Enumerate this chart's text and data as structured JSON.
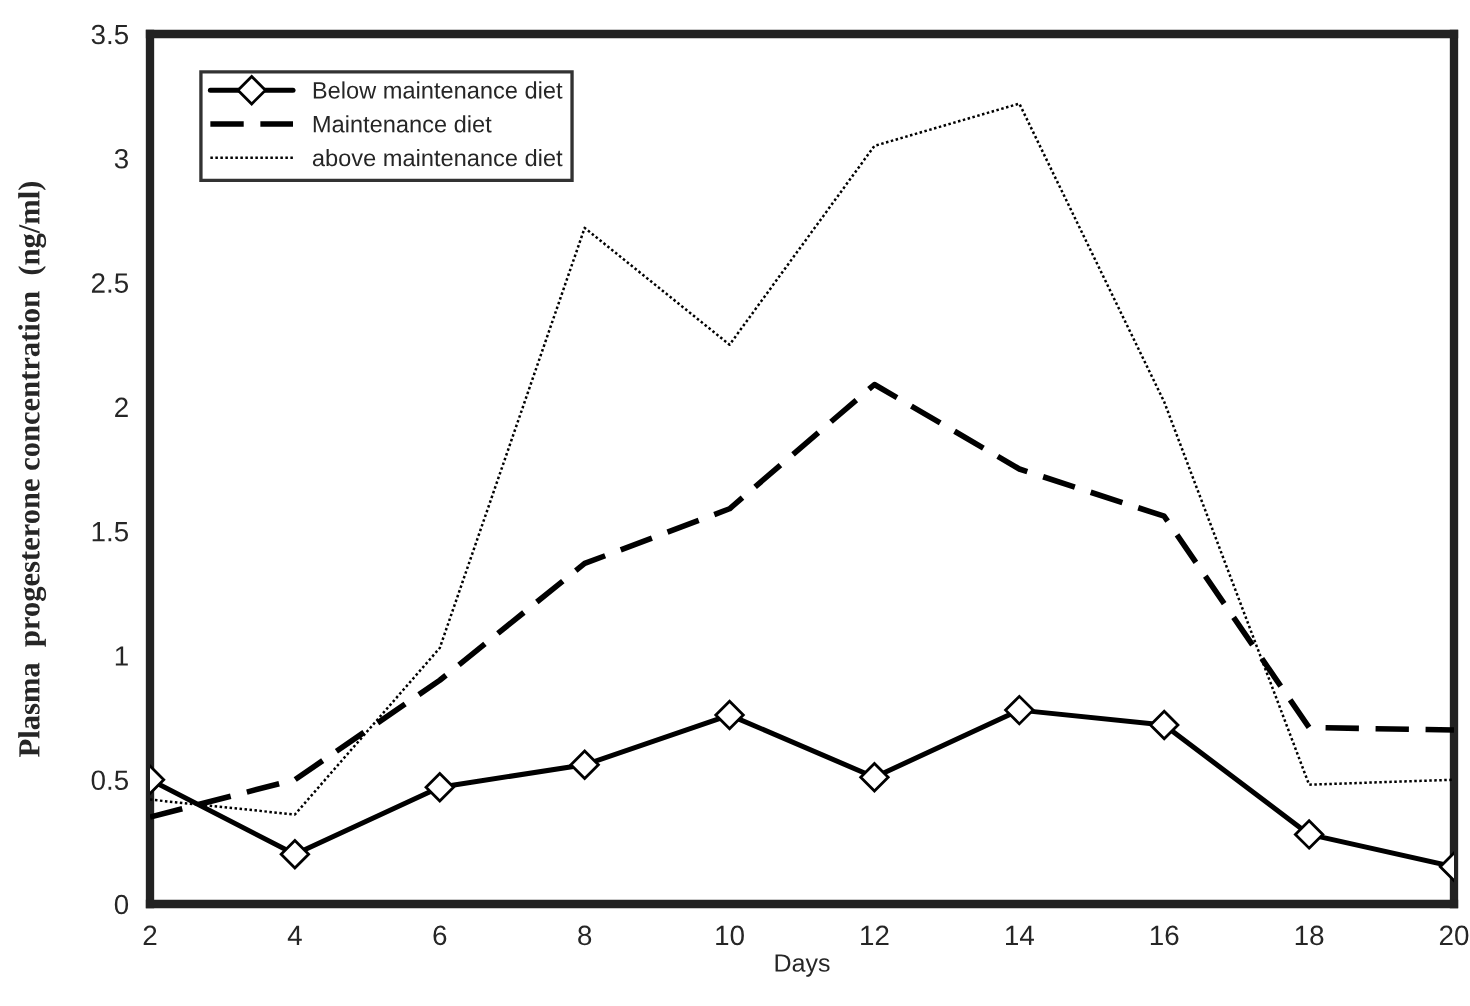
{
  "chart_data": {
    "type": "line",
    "xlabel": "Days",
    "ylabel": "Plasma  progesterone concentration  (ng/ml)",
    "x": [
      2,
      4,
      6,
      8,
      10,
      12,
      14,
      16,
      18,
      20
    ],
    "xlim": [
      2,
      20
    ],
    "xticks": [
      2,
      4,
      6,
      8,
      10,
      12,
      14,
      16,
      18,
      20
    ],
    "ylim": [
      0,
      3.5
    ],
    "yticks": [
      0,
      0.5,
      1,
      1.5,
      2,
      2.5,
      3,
      3.5
    ],
    "grid": false,
    "legend": "top left",
    "series": [
      {
        "name": "Below maintenance diet",
        "color": "#000000",
        "marker": "diamond",
        "line_style": "solid",
        "values": [
          0.5,
          0.2,
          0.47,
          0.56,
          0.76,
          0.51,
          0.78,
          0.72,
          0.28,
          0.15
        ]
      },
      {
        "name": "Maintenance diet",
        "color": "#000000",
        "marker": "none",
        "line_style": "dashed",
        "values": [
          0.35,
          0.5,
          0.9,
          1.37,
          1.59,
          2.09,
          1.75,
          1.56,
          0.71,
          0.7
        ]
      },
      {
        "name": "above maintenance diet",
        "color": "#000000",
        "marker": "none",
        "line_style": "dotted",
        "values": [
          0.42,
          0.36,
          1.03,
          2.72,
          2.25,
          3.05,
          3.22,
          2.02,
          0.48,
          0.5
        ]
      }
    ]
  }
}
